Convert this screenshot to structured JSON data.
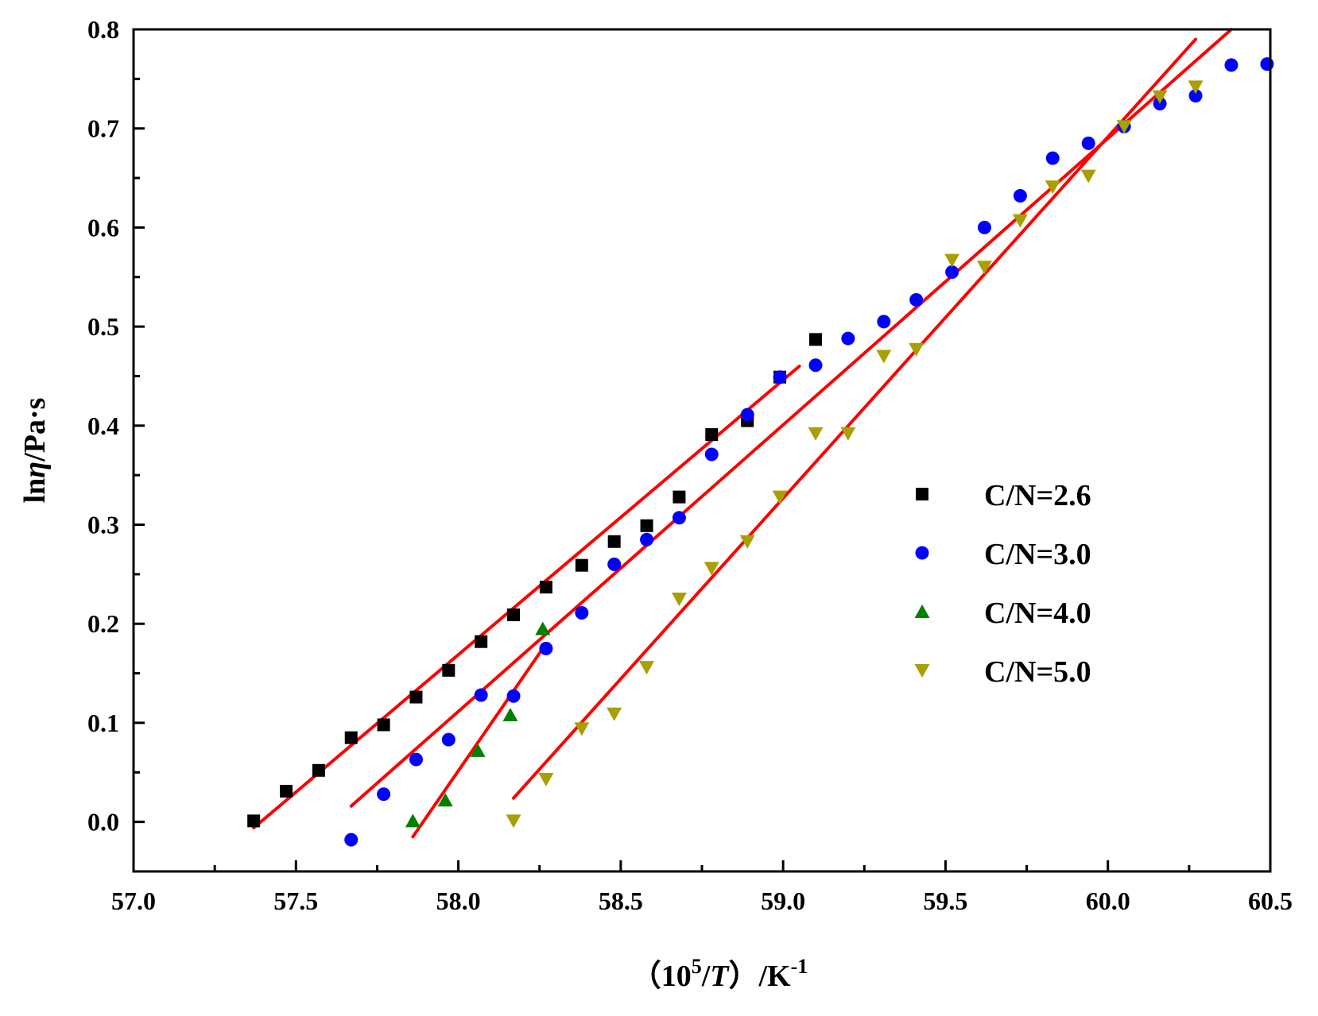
{
  "chart_data": {
    "type": "scatter",
    "title": "",
    "xlabel": {
      "prefix": "（10",
      "sup": "5",
      "mid": "/",
      "ital": "T",
      "suffix": "）/K",
      "sup2": "-1"
    },
    "ylabel": {
      "prefix": "ln",
      "ital": "η",
      "suffix": "/Pa·s"
    },
    "xlim": [
      57.0,
      60.5
    ],
    "ylim": [
      -0.05,
      0.8
    ],
    "x_ticks": [
      "57.0",
      "57.5",
      "58.0",
      "58.5",
      "59.0",
      "59.5",
      "60.0",
      "60.5"
    ],
    "y_ticks": [
      "0.0",
      "0.1",
      "0.2",
      "0.3",
      "0.4",
      "0.5",
      "0.6",
      "0.7",
      "0.8"
    ],
    "legend_position": "right-middle",
    "fit_color": "#ff0000",
    "series": [
      {
        "name": "C/N=2.6",
        "marker": "square",
        "color": "#000000",
        "x": [
          57.37,
          57.47,
          57.57,
          57.67,
          57.77,
          57.87,
          57.97,
          58.07,
          58.17,
          58.27,
          58.38,
          58.48,
          58.58,
          58.68,
          58.78,
          58.89,
          58.99,
          59.1
        ],
        "y": [
          0.001,
          0.031,
          0.052,
          0.085,
          0.098,
          0.126,
          0.153,
          0.182,
          0.209,
          0.237,
          0.259,
          0.283,
          0.299,
          0.328,
          0.391,
          0.405,
          0.449,
          0.487
        ],
        "fit": {
          "x": [
            57.37,
            59.05
          ],
          "y": [
            -0.006,
            0.46
          ]
        }
      },
      {
        "name": "C/N=3.0",
        "marker": "circle",
        "color": "#0000ff",
        "x": [
          57.67,
          57.77,
          57.87,
          57.97,
          58.07,
          58.17,
          58.27,
          58.38,
          58.48,
          58.58,
          58.68,
          58.78,
          58.89,
          58.99,
          59.1,
          59.2,
          59.31,
          59.41,
          59.52,
          59.62,
          59.73,
          59.83,
          59.94,
          60.05,
          60.16,
          60.27,
          60.38,
          60.49
        ],
        "y": [
          -0.018,
          0.028,
          0.063,
          0.083,
          0.128,
          0.127,
          0.175,
          0.211,
          0.26,
          0.285,
          0.307,
          0.371,
          0.411,
          0.449,
          0.461,
          0.488,
          0.505,
          0.527,
          0.555,
          0.6,
          0.632,
          0.67,
          0.685,
          0.702,
          0.725,
          0.733,
          0.764,
          0.765
        ],
        "fit": {
          "x": [
            57.67,
            60.38
          ],
          "y": [
            0.016,
            0.8
          ]
        }
      },
      {
        "name": "C/N=4.0",
        "marker": "triangle-up",
        "color": "#008000",
        "x": [
          57.86,
          57.96,
          58.06,
          58.16,
          58.26
        ],
        "y": [
          0.001,
          0.022,
          0.072,
          0.108,
          0.195
        ],
        "fit": {
          "x": [
            57.86,
            58.26
          ],
          "y": [
            -0.015,
            0.175
          ]
        }
      },
      {
        "name": "C/N=5.0",
        "marker": "triangle-down",
        "color": "#a8a000",
        "x": [
          58.17,
          58.27,
          58.38,
          58.48,
          58.58,
          58.68,
          58.78,
          58.89,
          58.99,
          59.1,
          59.2,
          59.31,
          59.41,
          59.52,
          59.62,
          59.73,
          59.83,
          59.94,
          60.05,
          60.16,
          60.27
        ],
        "y": [
          0.001,
          0.043,
          0.094,
          0.109,
          0.156,
          0.225,
          0.256,
          0.283,
          0.328,
          0.392,
          0.392,
          0.47,
          0.477,
          0.567,
          0.56,
          0.607,
          0.641,
          0.652,
          0.702,
          0.732,
          0.742
        ],
        "fit": {
          "x": [
            58.17,
            60.27
          ],
          "y": [
            0.024,
            0.79
          ]
        }
      }
    ]
  }
}
